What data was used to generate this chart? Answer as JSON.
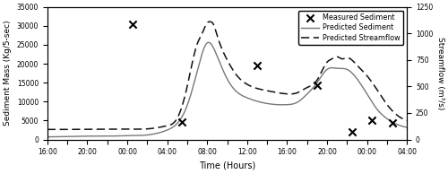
{
  "title": "",
  "xlabel": "Time (Hours)",
  "ylabel_left": "Sediment Mass (Kg/5-sec)",
  "ylabel_right": "Streamflow (m³/s)",
  "xlim": [
    0,
    36
  ],
  "ylim_left": [
    0,
    35000
  ],
  "ylim_right": [
    0,
    1250
  ],
  "yticks_left": [
    0,
    5000,
    10000,
    15000,
    20000,
    25000,
    30000,
    35000
  ],
  "yticks_right": [
    0,
    250,
    500,
    750,
    1000,
    1250
  ],
  "xtick_positions": [
    0,
    2,
    4,
    6,
    8,
    10,
    12,
    14,
    16,
    18,
    20,
    22,
    24,
    26,
    28,
    30,
    32,
    34,
    36
  ],
  "xtick_labels": [
    "16:00",
    "",
    "20:00",
    "",
    "00:00",
    "",
    "04:00",
    "",
    "08:00",
    "",
    "12:00",
    "",
    "16:00",
    "",
    "20:00",
    "",
    "00:00",
    "",
    "04:00"
  ],
  "measured_sediment_x": [
    8.5,
    13.5,
    21.0,
    27.0,
    30.5,
    32.5,
    34.5
  ],
  "measured_sediment_y": [
    30500,
    4700,
    19500,
    14400,
    2000,
    5000,
    4300
  ],
  "line_color": "#777777",
  "dashed_color": "#111111",
  "marker_color": "#000000",
  "bg_color": "#ffffff"
}
